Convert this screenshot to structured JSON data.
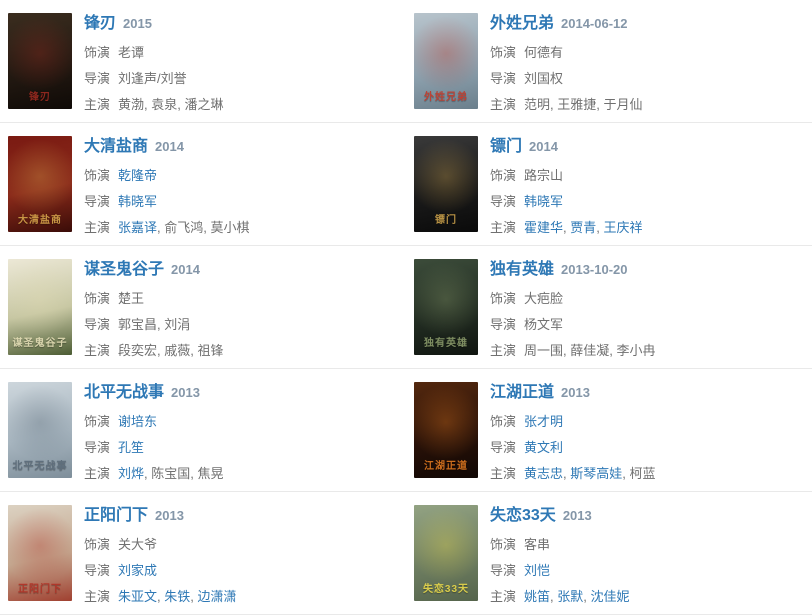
{
  "page": {
    "background": "#ffffff",
    "type_hint": "actor-filmography-list"
  },
  "colors": {
    "link": "#2e78b5",
    "year": "#8496a8",
    "text": "#707070",
    "separator": "#e9e9e9"
  },
  "items": [
    {
      "title": "锋刃",
      "year": "2015",
      "poster": {
        "name": "poster-fengren",
        "colors": [
          "#3b2d1f",
          "#241a12",
          "#0f0a07"
        ],
        "accent": "#9a2a20"
      },
      "lines": [
        {
          "label": "饰演",
          "parts": [
            {
              "text": "老谭",
              "link": false
            }
          ]
        },
        {
          "label": "导演",
          "parts": [
            {
              "text": "刘逢声/刘誉",
              "link": false
            }
          ]
        },
        {
          "label": "主演",
          "parts": [
            {
              "text": "黄渤",
              "link": false
            },
            {
              "text": "袁泉",
              "link": false
            },
            {
              "text": "潘之琳",
              "link": false
            }
          ]
        }
      ]
    },
    {
      "title": "外姓兄弟",
      "year": "2014-06-12",
      "poster": {
        "name": "poster-waixingxiongdi",
        "colors": [
          "#b8c4cc",
          "#8fa3b0",
          "#6b7f8c"
        ],
        "accent": "#c23a2a"
      },
      "lines": [
        {
          "label": "饰演",
          "parts": [
            {
              "text": "何德有",
              "link": false
            }
          ]
        },
        {
          "label": "导演",
          "parts": [
            {
              "text": "刘国权",
              "link": false
            }
          ]
        },
        {
          "label": "主演",
          "parts": [
            {
              "text": "范明",
              "link": false
            },
            {
              "text": "王雅捷",
              "link": false
            },
            {
              "text": "于月仙",
              "link": false
            }
          ]
        }
      ]
    },
    {
      "title": "大清盐商",
      "year": "2014",
      "poster": {
        "name": "poster-daqingyanshang",
        "colors": [
          "#7a1a12",
          "#8a2a1a",
          "#3a0c08"
        ],
        "accent": "#d4a24a"
      },
      "lines": [
        {
          "label": "饰演",
          "parts": [
            {
              "text": "乾隆帝",
              "link": true
            }
          ]
        },
        {
          "label": "导演",
          "parts": [
            {
              "text": "韩晓军",
              "link": true
            }
          ]
        },
        {
          "label": "主演",
          "parts": [
            {
              "text": "张嘉译",
              "link": true
            },
            {
              "text": "俞飞鸿",
              "link": false
            },
            {
              "text": "莫小棋",
              "link": false
            }
          ]
        }
      ]
    },
    {
      "title": "镖门",
      "year": "2014",
      "poster": {
        "name": "poster-biaomen",
        "colors": [
          "#3a3a3a",
          "#1b1b1b",
          "#0a0a0a"
        ],
        "accent": "#caa04a"
      },
      "lines": [
        {
          "label": "饰演",
          "parts": [
            {
              "text": "路宗山",
              "link": false
            }
          ]
        },
        {
          "label": "导演",
          "parts": [
            {
              "text": "韩晓军",
              "link": true
            }
          ]
        },
        {
          "label": "主演",
          "parts": [
            {
              "text": "霍建华",
              "link": true
            },
            {
              "text": "贾青",
              "link": true
            },
            {
              "text": "王庆祥",
              "link": true
            }
          ]
        }
      ]
    },
    {
      "title": "谋圣鬼谷子",
      "year": "2014",
      "poster": {
        "name": "poster-moushengguiguzi",
        "colors": [
          "#ece8d6",
          "#c6c6a2",
          "#4c5c34"
        ],
        "accent": "#e2dcb4"
      },
      "lines": [
        {
          "label": "饰演",
          "parts": [
            {
              "text": "楚王",
              "link": false
            }
          ]
        },
        {
          "label": "导演",
          "parts": [
            {
              "text": "郭宝昌",
              "link": false
            },
            {
              "text": "刘涓",
              "link": false
            }
          ]
        },
        {
          "label": "主演",
          "parts": [
            {
              "text": "段奕宏",
              "link": false
            },
            {
              "text": "戚薇",
              "link": false
            },
            {
              "text": "祖锋",
              "link": false
            }
          ]
        }
      ]
    },
    {
      "title": "独有英雄",
      "year": "2013-10-20",
      "poster": {
        "name": "poster-duyouyingxiong",
        "colors": [
          "#3c4c3a",
          "#232e23",
          "#101510"
        ],
        "accent": "#8a9a6a"
      },
      "lines": [
        {
          "label": "饰演",
          "parts": [
            {
              "text": "大疤脸",
              "link": false
            }
          ]
        },
        {
          "label": "导演",
          "parts": [
            {
              "text": "杨文军",
              "link": false
            }
          ]
        },
        {
          "label": "主演",
          "parts": [
            {
              "text": "周一围",
              "link": false
            },
            {
              "text": "薛佳凝",
              "link": false
            },
            {
              "text": "李小冉",
              "link": false
            }
          ]
        }
      ]
    },
    {
      "title": "北平无战事",
      "year": "2013",
      "poster": {
        "name": "poster-beipingwuzhanshi",
        "colors": [
          "#cdd6dc",
          "#a8b6c0",
          "#7e8e9a"
        ],
        "accent": "#5a6a78"
      },
      "lines": [
        {
          "label": "饰演",
          "parts": [
            {
              "text": "谢培东",
              "link": true
            }
          ]
        },
        {
          "label": "导演",
          "parts": [
            {
              "text": "孔笙",
              "link": true
            }
          ]
        },
        {
          "label": "主演",
          "parts": [
            {
              "text": "刘烨",
              "link": true
            },
            {
              "text": "陈宝国",
              "link": false
            },
            {
              "text": "焦晃",
              "link": false
            }
          ]
        }
      ]
    },
    {
      "title": "江湖正道",
      "year": "2013",
      "poster": {
        "name": "poster-jianghuzhengdao",
        "colors": [
          "#54280e",
          "#2a1208",
          "#100704"
        ],
        "accent": "#e07820"
      },
      "lines": [
        {
          "label": "饰演",
          "parts": [
            {
              "text": "张才明",
              "link": true
            }
          ]
        },
        {
          "label": "导演",
          "parts": [
            {
              "text": "黄文利",
              "link": true
            }
          ]
        },
        {
          "label": "主演",
          "parts": [
            {
              "text": "黄志忠",
              "link": true
            },
            {
              "text": "斯琴高娃",
              "link": true
            },
            {
              "text": "柯蓝",
              "link": false
            }
          ]
        }
      ]
    },
    {
      "title": "正阳门下",
      "year": "2013",
      "poster": {
        "name": "poster-zhengyangmenxia",
        "colors": [
          "#dcd2c2",
          "#c4a890",
          "#a04030"
        ],
        "accent": "#b03226"
      },
      "lines": [
        {
          "label": "饰演",
          "parts": [
            {
              "text": "关大爷",
              "link": false
            }
          ]
        },
        {
          "label": "导演",
          "parts": [
            {
              "text": "刘家成",
              "link": true
            }
          ]
        },
        {
          "label": "主演",
          "parts": [
            {
              "text": "朱亚文",
              "link": true
            },
            {
              "text": "朱铁",
              "link": true
            },
            {
              "text": "边潇潇",
              "link": true
            }
          ]
        }
      ]
    },
    {
      "title": "失恋33天",
      "year": "2013",
      "poster": {
        "name": "poster-shilian33tian",
        "colors": [
          "#93a383",
          "#6f7f62",
          "#55644c"
        ],
        "accent": "#e8d84a"
      },
      "lines": [
        {
          "label": "饰演",
          "parts": [
            {
              "text": "客串",
              "link": false
            }
          ]
        },
        {
          "label": "导演",
          "parts": [
            {
              "text": "刘恺",
              "link": true
            }
          ]
        },
        {
          "label": "主演",
          "parts": [
            {
              "text": "姚笛",
              "link": true
            },
            {
              "text": "张默",
              "link": true
            },
            {
              "text": "沈佳妮",
              "link": true
            }
          ]
        }
      ]
    }
  ]
}
